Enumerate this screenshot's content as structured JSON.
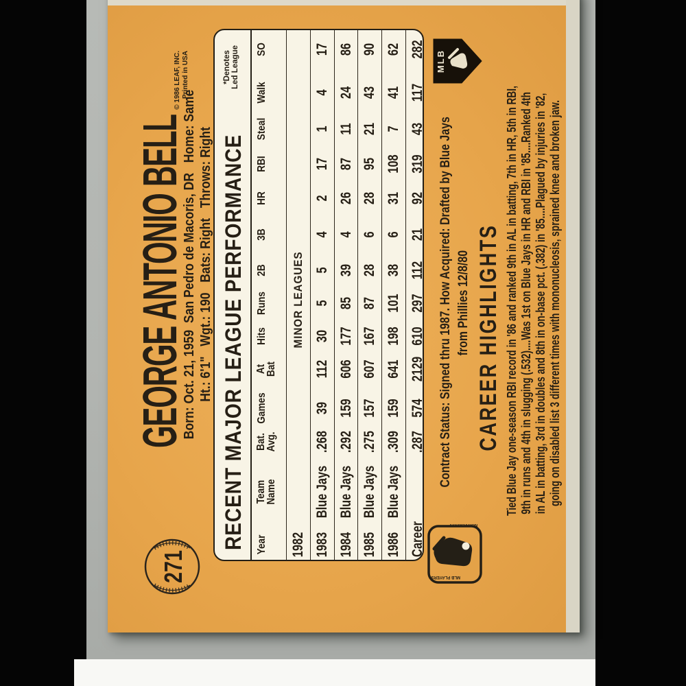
{
  "colors": {
    "card_orange": "#e7a54b",
    "panel_cream": "#f8f4e6",
    "ink": "#261f15",
    "surface_gray": "#b2b5b1",
    "side_bar_black": "#050505",
    "card_border_white": "#ded9c9"
  },
  "card": {
    "number": "271",
    "player_name": "GEORGE ANTONIO BELL",
    "bio_line1": "Born: Oct. 21, 1959  San Pedro de Macoris, DR   Home: Same",
    "bio_line2": "Ht.: 6'1\"   Wgt.: 190   Bats: Right   Throws: Right",
    "copyright_line1": "© 1986 LEAF, INC.",
    "copyright_line2": "Printed in USA",
    "table": {
      "title": "RECENT MAJOR LEAGUE PERFORMANCE",
      "denotes_line1": "*Denotes",
      "denotes_line2": "Led League",
      "columns": [
        [
          "Year"
        ],
        [
          "Team",
          "Name"
        ],
        [
          "Bat.",
          "Avg."
        ],
        [
          "Games"
        ],
        [
          "At",
          "Bat"
        ],
        [
          "Hits"
        ],
        [
          "Runs"
        ],
        [
          "2B"
        ],
        [
          "3B"
        ],
        [
          "HR"
        ],
        [
          "RBI"
        ],
        [
          "Steal"
        ],
        [
          "Walk"
        ],
        [
          "SO"
        ]
      ],
      "rows": [
        {
          "cells": [
            "1982",
            "MINOR LEAGUES",
            "",
            "",
            "",
            "",
            "",
            "",
            "",
            "",
            "",
            "",
            "",
            ""
          ]
        },
        {
          "cells": [
            "1983",
            "Blue Jays",
            ".268",
            "39",
            "112",
            "30",
            "5",
            "5",
            "4",
            "2",
            "17",
            "1",
            "4",
            "17"
          ]
        },
        {
          "cells": [
            "1984",
            "Blue Jays",
            ".292",
            "159",
            "606",
            "177",
            "85",
            "39",
            "4",
            "26",
            "87",
            "11",
            "24",
            "86"
          ]
        },
        {
          "cells": [
            "1985",
            "Blue Jays",
            ".275",
            "157",
            "607",
            "167",
            "87",
            "28",
            "6",
            "28",
            "95",
            "21",
            "43",
            "90"
          ]
        },
        {
          "cells": [
            "1986",
            "Blue Jays",
            ".309",
            "159",
            "641",
            "198",
            "101",
            "38",
            "6",
            "31",
            "108",
            "7",
            "41",
            "62"
          ]
        },
        {
          "cells": [
            "Career",
            "",
            ".287",
            "574",
            "2129",
            "610",
            "297",
            "112",
            "21",
            "92",
            "319",
            "43",
            "117",
            "282"
          ]
        }
      ]
    },
    "contract_line1": "Contract Status: Signed thru 1987. How Acquired: Drafted by Blue Jays",
    "contract_line2": "from Phillies 12/8/80",
    "career": {
      "heading": "CAREER HIGHLIGHTS",
      "lines": [
        "Tied Blue Jay one-season RBI record in '86 and ranked 9th in AL in batting, 7th in HR, 5th in RBI,",
        "9th in runs and 4th in slugging (.532)....Was 1st on Blue Jays in HR and RBI in '85....Ranked 4th",
        "in AL in batting, 3rd in doubles and 8th in on-base pct. (.382) in '85....Plagued by injuries in '82,",
        "going on disabled list 3 different times with mononucleosis, sprained knee and broken jaw."
      ]
    },
    "logos": {
      "mlb_label": "MLB",
      "mlbpa_side1": "MLB PLAYERS",
      "mlbpa_side2": "ASSOCIATION"
    }
  }
}
